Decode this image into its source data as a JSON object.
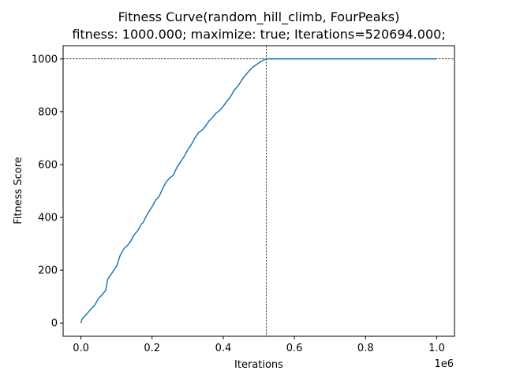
{
  "chart_data": {
    "type": "line",
    "title": "Fitness Curve(random_hill_climb, FourPeaks)",
    "subtitle": "fitness: 1000.000; maximize: true; Iterations=520694.000;",
    "xlabel": "Iterations",
    "ylabel": "Fitness Score",
    "x_offset_label": "1e6",
    "xlim": [
      -0.05,
      1.05
    ],
    "ylim": [
      -50,
      1050
    ],
    "x_ticks": [
      0.0,
      0.2,
      0.4,
      0.6,
      0.8,
      1.0
    ],
    "x_tick_labels": [
      "0.0",
      "0.2",
      "0.4",
      "0.6",
      "0.8",
      "1.0"
    ],
    "y_ticks": [
      0,
      200,
      400,
      600,
      800,
      1000
    ],
    "y_tick_labels": [
      "0",
      "200",
      "400",
      "600",
      "800",
      "1000"
    ],
    "grid": false,
    "reference_lines": {
      "x": 0.520694,
      "y": 1000
    },
    "series": [
      {
        "color": "#1f77b4",
        "x": [
          0,
          0.003,
          0.01,
          0.02,
          0.03,
          0.04,
          0.05,
          0.055,
          0.06,
          0.07,
          0.075,
          0.08,
          0.09,
          0.1,
          0.11,
          0.12,
          0.125,
          0.13,
          0.14,
          0.15,
          0.16,
          0.17,
          0.175,
          0.18,
          0.19,
          0.2,
          0.21,
          0.22,
          0.23,
          0.24,
          0.25,
          0.26,
          0.27,
          0.28,
          0.29,
          0.3,
          0.31,
          0.32,
          0.33,
          0.34,
          0.35,
          0.36,
          0.37,
          0.38,
          0.39,
          0.4,
          0.41,
          0.42,
          0.43,
          0.44,
          0.45,
          0.46,
          0.47,
          0.48,
          0.49,
          0.5,
          0.51,
          0.520694,
          0.6,
          0.8,
          1.0
        ],
        "values": [
          0,
          15,
          25,
          40,
          55,
          70,
          95,
          100,
          108,
          125,
          165,
          175,
          195,
          215,
          255,
          280,
          288,
          292,
          310,
          335,
          350,
          375,
          380,
          395,
          420,
          440,
          465,
          480,
          510,
          535,
          550,
          560,
          590,
          610,
          630,
          655,
          675,
          700,
          720,
          730,
          745,
          765,
          778,
          795,
          805,
          820,
          840,
          855,
          880,
          895,
          915,
          935,
          950,
          965,
          975,
          985,
          993,
          1000,
          1000,
          1000,
          1000
        ]
      }
    ]
  }
}
